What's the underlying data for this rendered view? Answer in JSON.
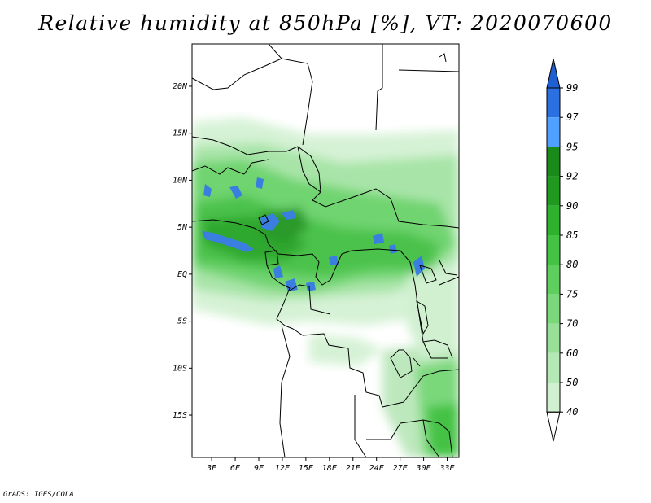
{
  "title": "Relative humidity at 850hPa [%], VT: 2020070600",
  "credit": "GrADS: IGES/COLA",
  "map": {
    "lat_range": [
      -19.5,
      24.5
    ],
    "lon_range": [
      0.5,
      34.5
    ],
    "lat_ticks": [
      {
        "value": 20,
        "label": "20N"
      },
      {
        "value": 15,
        "label": "15N"
      },
      {
        "value": 10,
        "label": "10N"
      },
      {
        "value": 5,
        "label": "5N"
      },
      {
        "value": 0,
        "label": "EQ"
      },
      {
        "value": -5,
        "label": "5S"
      },
      {
        "value": -10,
        "label": "10S"
      },
      {
        "value": -15,
        "label": "15S"
      }
    ],
    "lon_ticks": [
      {
        "value": 3,
        "label": "3E"
      },
      {
        "value": 6,
        "label": "6E"
      },
      {
        "value": 9,
        "label": "9E"
      },
      {
        "value": 12,
        "label": "12E"
      },
      {
        "value": 15,
        "label": "15E"
      },
      {
        "value": 18,
        "label": "18E"
      },
      {
        "value": 21,
        "label": "21E"
      },
      {
        "value": 24,
        "label": "24E"
      },
      {
        "value": 27,
        "label": "27E"
      },
      {
        "value": 30,
        "label": "30E"
      },
      {
        "value": 33,
        "label": "33E"
      }
    ]
  },
  "colorbar": {
    "levels": [
      "40",
      "50",
      "60",
      "70",
      "75",
      "80",
      "85",
      "90",
      "92",
      "95",
      "97",
      "99"
    ],
    "colors": [
      "#e8f8e8",
      "#d0f0d0",
      "#b4e8b4",
      "#98e098",
      "#7ad87a",
      "#5ece5e",
      "#44c244",
      "#2eb22e",
      "#1f9a1f",
      "#1a8a1a",
      "#4fa0ff",
      "#2a70e0",
      "#1f5fcf"
    ]
  }
}
